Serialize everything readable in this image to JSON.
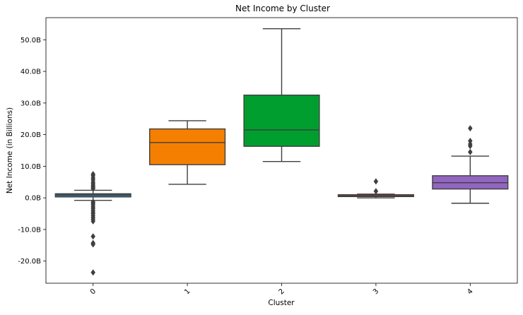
{
  "chart_data": {
    "type": "box",
    "title": "Net Income by Cluster",
    "xlabel": "Cluster",
    "ylabel": "Net Income (in Billions)",
    "ylim": [
      -27,
      57
    ],
    "yticks": [
      -20,
      -10,
      0,
      10,
      20,
      30,
      40,
      50
    ],
    "ytick_labels": [
      "-20.0B",
      "-10.0B",
      "0.0B",
      "10.0B",
      "20.0B",
      "30.0B",
      "40.0B",
      "50.0B"
    ],
    "categories": [
      "0",
      "1",
      "2",
      "3",
      "4"
    ],
    "colors": [
      "#3274a1",
      "#f57f00",
      "#009e2f",
      "#c03d3e",
      "#9165c0"
    ],
    "boxes": [
      {
        "category": "0",
        "whisker_low": -0.8,
        "q1": 0.3,
        "median": 0.9,
        "q3": 1.3,
        "whisker_high": 2.4,
        "outliers": [
          7.5,
          7.0,
          6.3,
          5.7,
          5.0,
          4.5,
          4.0,
          3.6,
          3.2,
          2.9,
          -1.3,
          -1.7,
          -2.2,
          -2.8,
          -3.3,
          -3.9,
          -4.5,
          -5.0,
          -5.6,
          -6.2,
          -6.8,
          -7.4,
          -12.2,
          -14.3,
          -14.7,
          -23.6
        ]
      },
      {
        "category": "1",
        "whisker_low": 4.3,
        "q1": 10.5,
        "median": 17.5,
        "q3": 21.8,
        "whisker_high": 24.4,
        "outliers": []
      },
      {
        "category": "2",
        "whisker_low": 11.5,
        "q1": 16.3,
        "median": 21.5,
        "q3": 32.5,
        "whisker_high": 53.5,
        "outliers": []
      },
      {
        "category": "3",
        "whisker_low": 0.0,
        "q1": 0.4,
        "median": 0.6,
        "q3": 1.0,
        "whisker_high": 1.2,
        "outliers": [
          5.2,
          2.1
        ]
      },
      {
        "category": "4",
        "whisker_low": -1.7,
        "q1": 2.8,
        "median": 4.8,
        "q3": 7.0,
        "whisker_high": 13.2,
        "outliers": [
          22.0,
          18.0,
          17.0,
          16.4,
          14.5
        ]
      }
    ]
  }
}
